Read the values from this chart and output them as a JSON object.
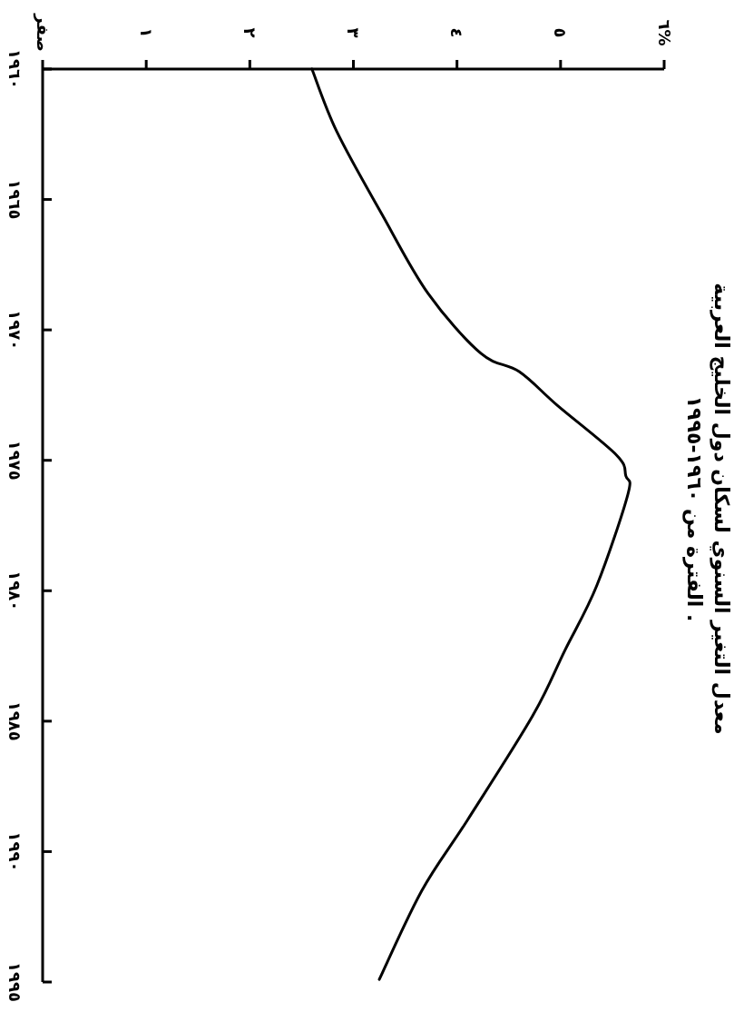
{
  "chart_data": {
    "type": "line",
    "orientation": "horizontal",
    "title": "معدل التغير السنوي لسكان دول الخليج العربية",
    "subtitle": "الفترة من ١٩٦٠-١٩٩٥ .",
    "x": [
      1960,
      1962.4,
      1965.6,
      1968.6,
      1970.9,
      1971.6,
      1972.9,
      1974.8,
      1975.6,
      1976.3,
      1979.8,
      1982.3,
      1984.8,
      1988.8,
      1991.5,
      1994.9
    ],
    "series": [
      {
        "color": "#000000",
        "values": [
          2.6,
          2.84,
          3.28,
          3.72,
          4.23,
          4.6,
          4.97,
          5.54,
          5.63,
          5.65,
          5.35,
          5.04,
          4.73,
          4.1,
          3.66,
          3.25
        ]
      }
    ],
    "ylim": [
      1995,
      1960
    ],
    "yticks": [
      {
        "value": 1960,
        "label": "١٩٦٠"
      },
      {
        "value": 1965,
        "label": "١٩٦٥"
      },
      {
        "value": 1970,
        "label": "١٩٧٠"
      },
      {
        "value": 1975,
        "label": "١٩٧٥"
      },
      {
        "value": 1980,
        "label": "١٩٨٠"
      },
      {
        "value": 1985,
        "label": "١٩٨٥"
      },
      {
        "value": 1990,
        "label": "١٩٩٠"
      },
      {
        "value": 1995,
        "label": "١٩٩٥"
      }
    ],
    "xlim": [
      0,
      6
    ],
    "xticks": [
      {
        "value": 0,
        "label": "صفر"
      },
      {
        "value": 1,
        "label": "١"
      },
      {
        "value": 2,
        "label": "٢"
      },
      {
        "value": 3,
        "label": "٣"
      },
      {
        "value": 4,
        "label": "٤"
      },
      {
        "value": 5,
        "label": "٥"
      },
      {
        "value": 6,
        "label": "٦%"
      }
    ],
    "grid": false,
    "marker": "none",
    "line_style": "solid"
  }
}
